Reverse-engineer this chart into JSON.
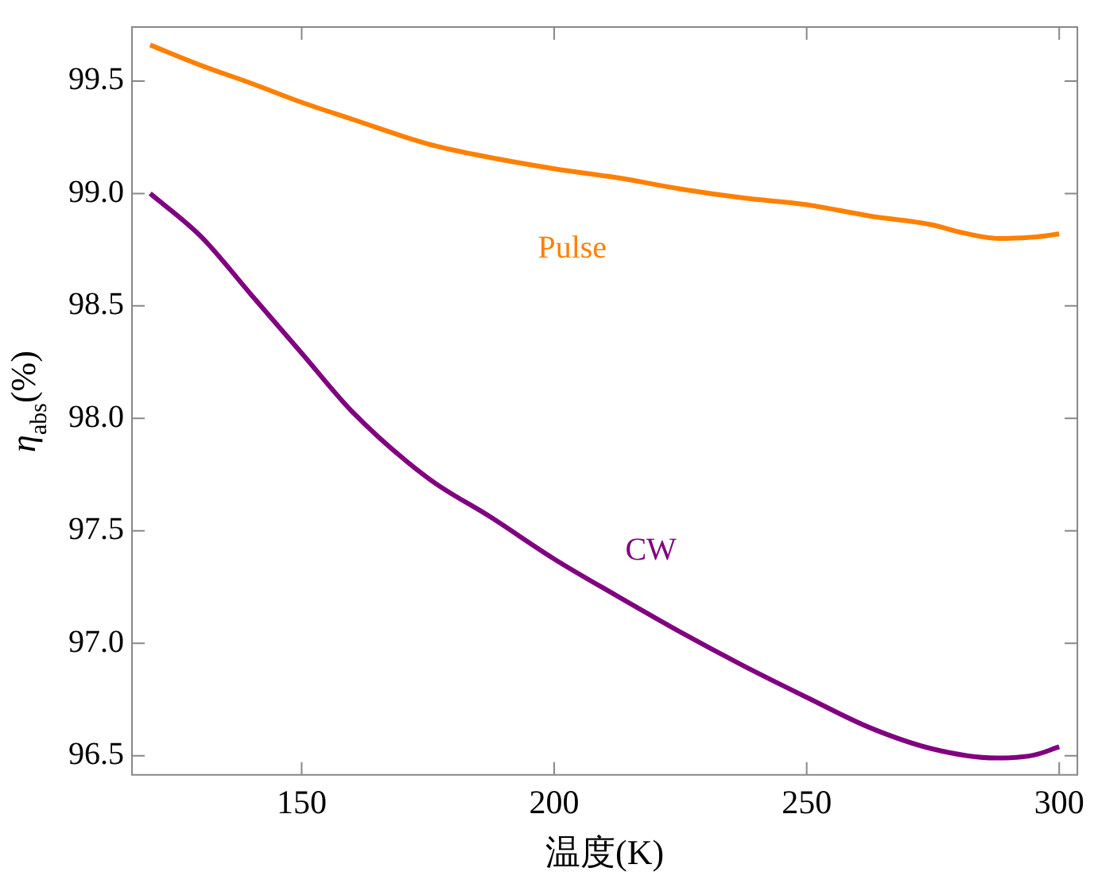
{
  "chart_data": {
    "type": "line",
    "xlabel": "温度(K)",
    "ylabel": "η$_{abs}$(%)",
    "xlim": [
      116.4,
      303.6
    ],
    "xticks": [
      150,
      200,
      250,
      300
    ],
    "ylim": [
      96.415,
      99.74
    ],
    "yticks": [
      {
        "value": 96.5,
        "label": "96.5"
      },
      {
        "value": 97,
        "label": "97.0"
      },
      {
        "value": 97.5,
        "label": "97.5"
      },
      {
        "value": 98,
        "label": "98.0"
      },
      {
        "value": 98.5,
        "label": "98.5"
      },
      {
        "value": 99,
        "label": "99.0"
      },
      {
        "value": 99.5,
        "label": "99.5"
      }
    ],
    "grid": false,
    "legend": false,
    "marker": "none",
    "line_style": "solid",
    "series": [
      {
        "name": "Pulse",
        "color": "#ff8000",
        "x": [
          120,
          130,
          140,
          150,
          160,
          175,
          185,
          200,
          212.5,
          225,
          237.5,
          250,
          262.5,
          275,
          280,
          288,
          295,
          300
        ],
        "values": [
          99.66,
          99.57,
          99.49,
          99.405,
          99.33,
          99.22,
          99.17,
          99.11,
          99.07,
          99.02,
          98.98,
          98.95,
          98.9,
          98.86,
          98.83,
          98.8,
          98.806,
          98.82
        ]
      },
      {
        "name": "CW",
        "color": "#800080",
        "x": [
          120,
          130,
          140,
          150,
          160,
          175,
          187.5,
          200,
          212.5,
          225,
          237.5,
          250,
          262.5,
          275,
          287.5,
          295,
          300
        ],
        "values": [
          99.0,
          98.81,
          98.55,
          98.29,
          98.03,
          97.735,
          97.56,
          97.375,
          97.21,
          97.05,
          96.9,
          96.76,
          96.625,
          96.53,
          96.49,
          96.503,
          96.54
        ]
      }
    ]
  }
}
